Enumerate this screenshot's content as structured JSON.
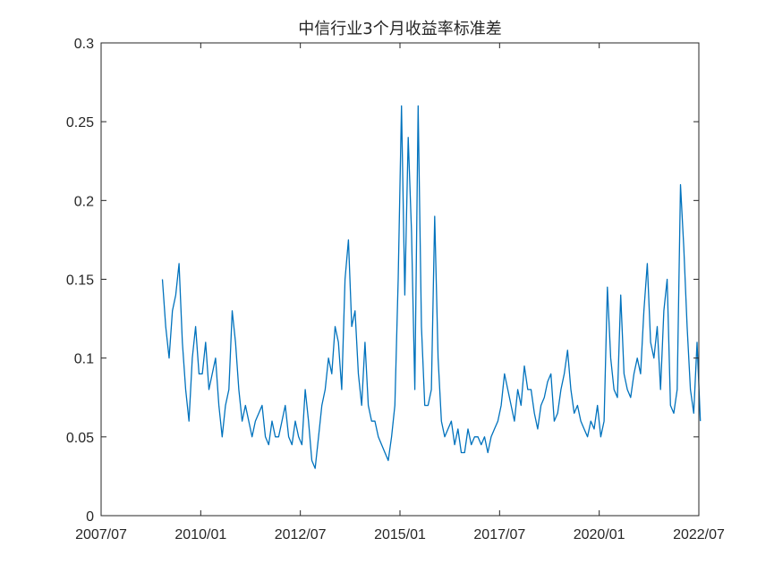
{
  "chart_data": {
    "type": "line",
    "title": "中信行业3个月收益率标准差",
    "xlabel": "",
    "ylabel": "",
    "grid": false,
    "legend": "none",
    "line_color": "#0072BD",
    "xlim": [
      "2007-07-01",
      "2022-07-01"
    ],
    "ylim": [
      0,
      0.3
    ],
    "xtick_labels": [
      "2007/07",
      "2010/01",
      "2012/07",
      "2015/01",
      "2017/07",
      "2020/01",
      "2022/07"
    ],
    "ytick_labels": [
      "0",
      "0.05",
      "0.1",
      "0.15",
      "0.2",
      "0.25",
      "0.3"
    ],
    "ytick_values": [
      0,
      0.05,
      0.1,
      0.15,
      0.2,
      0.25,
      0.3
    ],
    "series": [
      {
        "x": [
          "2009-01",
          "2009-02",
          "2009-03",
          "2009-04",
          "2009-05",
          "2009-06",
          "2009-07",
          "2009-08",
          "2009-09",
          "2009-10",
          "2009-11",
          "2009-12",
          "2010-01",
          "2010-02",
          "2010-03",
          "2010-04",
          "2010-05",
          "2010-06",
          "2010-07",
          "2010-08",
          "2010-09",
          "2010-10",
          "2010-11",
          "2010-12",
          "2011-01",
          "2011-02",
          "2011-03",
          "2011-04",
          "2011-05",
          "2011-06",
          "2011-07",
          "2011-08",
          "2011-09",
          "2011-10",
          "2011-11",
          "2011-12",
          "2012-01",
          "2012-02",
          "2012-03",
          "2012-04",
          "2012-05",
          "2012-06",
          "2012-07",
          "2012-08",
          "2012-09",
          "2012-10",
          "2012-11",
          "2012-12",
          "2013-01",
          "2013-02",
          "2013-03",
          "2013-04",
          "2013-05",
          "2013-06",
          "2013-07",
          "2013-08",
          "2013-09",
          "2013-10",
          "2013-11",
          "2013-12",
          "2014-01",
          "2014-02",
          "2014-03",
          "2014-04",
          "2014-05",
          "2014-06",
          "2014-07",
          "2014-08",
          "2014-09",
          "2014-10",
          "2014-11",
          "2014-12",
          "2015-01",
          "2015-02",
          "2015-03",
          "2015-04",
          "2015-05",
          "2015-06",
          "2015-07",
          "2015-08",
          "2015-09",
          "2015-10",
          "2015-11",
          "2015-12",
          "2016-01",
          "2016-02",
          "2016-03",
          "2016-04",
          "2016-05",
          "2016-06",
          "2016-07",
          "2016-08",
          "2016-09",
          "2016-10",
          "2016-11",
          "2016-12",
          "2017-01",
          "2017-02",
          "2017-03",
          "2017-04",
          "2017-05",
          "2017-06",
          "2017-07",
          "2017-08",
          "2017-09",
          "2017-10",
          "2017-11",
          "2017-12",
          "2018-01",
          "2018-02",
          "2018-03",
          "2018-04",
          "2018-05",
          "2018-06",
          "2018-07",
          "2018-08",
          "2018-09",
          "2018-10",
          "2018-11",
          "2018-12",
          "2019-01",
          "2019-02",
          "2019-03",
          "2019-04",
          "2019-05",
          "2019-06",
          "2019-07",
          "2019-08",
          "2019-09",
          "2019-10",
          "2019-11",
          "2019-12",
          "2020-01",
          "2020-02",
          "2020-03",
          "2020-04",
          "2020-05",
          "2020-06",
          "2020-07",
          "2020-08",
          "2020-09",
          "2020-10",
          "2020-11",
          "2020-12",
          "2021-01",
          "2021-02",
          "2021-03",
          "2021-04",
          "2021-05",
          "2021-06",
          "2021-07",
          "2021-08",
          "2021-09",
          "2021-10",
          "2021-11",
          "2021-12",
          "2022-01",
          "2022-02",
          "2022-03",
          "2022-04",
          "2022-05",
          "2022-06",
          "2022-07"
        ],
        "y": [
          0.15,
          0.12,
          0.1,
          0.13,
          0.14,
          0.16,
          0.11,
          0.08,
          0.06,
          0.1,
          0.12,
          0.09,
          0.09,
          0.11,
          0.08,
          0.09,
          0.1,
          0.07,
          0.05,
          0.07,
          0.08,
          0.13,
          0.11,
          0.08,
          0.06,
          0.07,
          0.06,
          0.05,
          0.06,
          0.065,
          0.07,
          0.05,
          0.045,
          0.06,
          0.05,
          0.05,
          0.06,
          0.07,
          0.05,
          0.045,
          0.06,
          0.05,
          0.045,
          0.08,
          0.06,
          0.035,
          0.03,
          0.05,
          0.07,
          0.08,
          0.1,
          0.09,
          0.12,
          0.11,
          0.08,
          0.15,
          0.175,
          0.12,
          0.13,
          0.09,
          0.07,
          0.11,
          0.07,
          0.06,
          0.06,
          0.05,
          0.045,
          0.04,
          0.035,
          0.05,
          0.07,
          0.15,
          0.26,
          0.14,
          0.24,
          0.18,
          0.08,
          0.26,
          0.12,
          0.07,
          0.07,
          0.08,
          0.19,
          0.1,
          0.06,
          0.05,
          0.055,
          0.06,
          0.045,
          0.055,
          0.04,
          0.04,
          0.055,
          0.045,
          0.05,
          0.05,
          0.045,
          0.05,
          0.04,
          0.05,
          0.055,
          0.06,
          0.07,
          0.09,
          0.08,
          0.07,
          0.06,
          0.08,
          0.07,
          0.095,
          0.08,
          0.08,
          0.065,
          0.055,
          0.07,
          0.075,
          0.085,
          0.09,
          0.06,
          0.065,
          0.08,
          0.09,
          0.105,
          0.08,
          0.065,
          0.07,
          0.06,
          0.055,
          0.05,
          0.06,
          0.055,
          0.07,
          0.05,
          0.06,
          0.145,
          0.1,
          0.08,
          0.075,
          0.14,
          0.09,
          0.08,
          0.075,
          0.09,
          0.1,
          0.09,
          0.13,
          0.16,
          0.11,
          0.1,
          0.12,
          0.08,
          0.13,
          0.15,
          0.07,
          0.065,
          0.08,
          0.21,
          0.17,
          0.12,
          0.08,
          0.065,
          0.11,
          0.06
        ]
      }
    ]
  }
}
